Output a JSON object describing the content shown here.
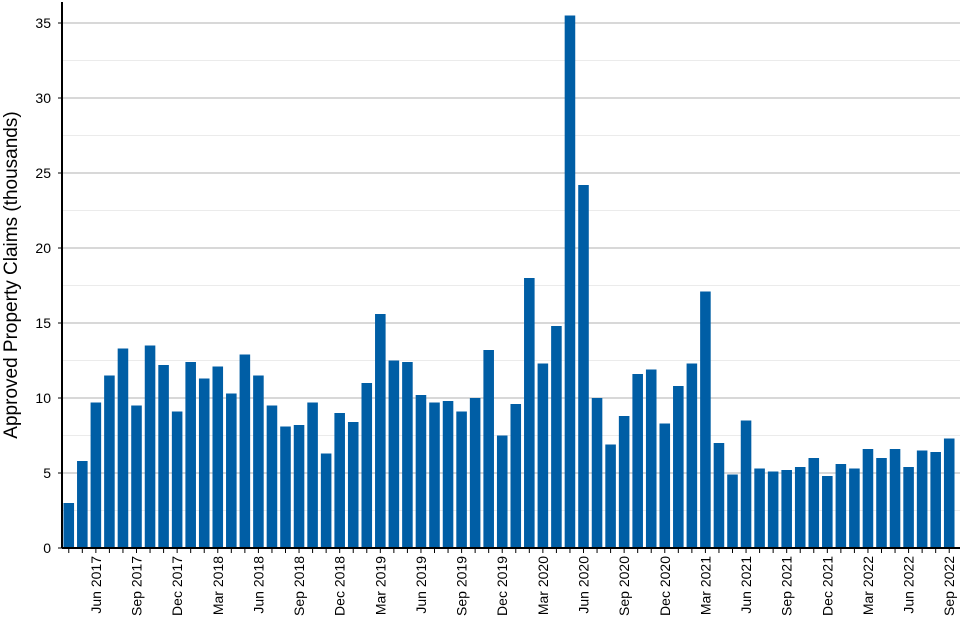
{
  "chart_data": {
    "type": "bar",
    "title": "",
    "xlabel": "",
    "ylabel": "Approved Property Claims (thousands)",
    "ylim": [
      0,
      36
    ],
    "yticks": [
      0,
      5,
      10,
      15,
      20,
      25,
      30,
      35
    ],
    "grid": "horizontal",
    "bar_color": "#005EA5",
    "categories": [
      "Apr 2017",
      "May 2017",
      "Jun 2017",
      "Jul 2017",
      "Aug 2017",
      "Sep 2017",
      "Oct 2017",
      "Nov 2017",
      "Dec 2017",
      "Jan 2018",
      "Feb 2018",
      "Mar 2018",
      "Apr 2018",
      "May 2018",
      "Jun 2018",
      "Jul 2018",
      "Aug 2018",
      "Sep 2018",
      "Oct 2018",
      "Nov 2018",
      "Dec 2018",
      "Jan 2019",
      "Feb 2019",
      "Mar 2019",
      "Apr 2019",
      "May 2019",
      "Jun 2019",
      "Jul 2019",
      "Aug 2019",
      "Sep 2019",
      "Oct 2019",
      "Nov 2019",
      "Dec 2019",
      "Jan 2020",
      "Feb 2020",
      "Mar 2020",
      "Apr 2020",
      "May 2020",
      "Jun 2020",
      "Jul 2020",
      "Aug 2020",
      "Sep 2020",
      "Oct 2020",
      "Nov 2020",
      "Dec 2020",
      "Jan 2021",
      "Feb 2021",
      "Mar 2021",
      "Apr 2021",
      "May 2021",
      "Jun 2021",
      "Jul 2021",
      "Aug 2021",
      "Sep 2021",
      "Oct 2021",
      "Nov 2021",
      "Dec 2021",
      "Jan 2022",
      "Feb 2022",
      "Mar 2022",
      "Apr 2022",
      "May 2022",
      "Jun 2022",
      "Jul 2022",
      "Aug 2022",
      "Sep 2022"
    ],
    "values": [
      3.0,
      5.8,
      9.7,
      11.5,
      13.3,
      9.5,
      13.5,
      12.2,
      9.1,
      12.4,
      11.3,
      12.1,
      10.3,
      12.9,
      11.5,
      9.5,
      8.1,
      8.2,
      9.7,
      6.3,
      9.0,
      8.4,
      11.0,
      15.6,
      12.5,
      12.4,
      10.2,
      9.7,
      9.8,
      9.1,
      10.0,
      13.2,
      7.5,
      9.6,
      18.0,
      12.3,
      14.8,
      35.5,
      24.2,
      10.0,
      6.9,
      8.8,
      11.6,
      11.9,
      8.3,
      10.8,
      12.3,
      17.1,
      7.0,
      4.9,
      8.5,
      5.3,
      5.1,
      5.2,
      5.4,
      6.0,
      4.8,
      5.6,
      5.3,
      6.6,
      6.0,
      6.6,
      5.4,
      6.5,
      6.4,
      7.3
    ],
    "xtick_labels": [
      "Jun 2017",
      "Sep 2017",
      "Dec 2017",
      "Mar 2018",
      "Jun 2018",
      "Sep 2018",
      "Dec 2018",
      "Mar 2019",
      "Jun 2019",
      "Sep 2019",
      "Dec 2019",
      "Mar 2020",
      "Jun 2020",
      "Sep 2020",
      "Dec 2020",
      "Mar 2021",
      "Jun 2021",
      "Sep 2021",
      "Dec 2021",
      "Mar 2022",
      "Jun 2022",
      "Sep 2022"
    ]
  }
}
